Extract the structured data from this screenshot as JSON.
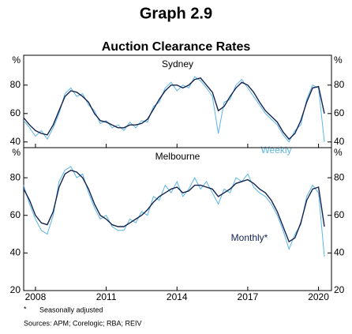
{
  "title": "Graph 2.9",
  "subtitle": "Auction Clearance Rates",
  "footnote_marker": "*",
  "footnote": "Seasonally adjusted",
  "sources": "Sources: APM; Corelogic; RBA; REIV",
  "chart_data": [
    {
      "type": "line",
      "panel_title": "Sydney",
      "y_unit": "%",
      "ylim": [
        36,
        101
      ],
      "yticks": [
        40,
        60,
        80
      ],
      "annotation": "Weekly",
      "x": [
        2007.5,
        2007.75,
        2008,
        2008.25,
        2008.5,
        2008.75,
        2009,
        2009.25,
        2009.5,
        2009.75,
        2010,
        2010.25,
        2010.5,
        2010.75,
        2011,
        2011.25,
        2011.5,
        2011.75,
        2012,
        2012.25,
        2012.5,
        2012.75,
        2013,
        2013.25,
        2013.5,
        2013.75,
        2014,
        2014.25,
        2014.5,
        2014.75,
        2015,
        2015.25,
        2015.5,
        2015.75,
        2016,
        2016.25,
        2016.5,
        2016.75,
        2017,
        2017.25,
        2017.5,
        2017.75,
        2018,
        2018.25,
        2018.5,
        2018.75,
        2019,
        2019.25,
        2019.5,
        2019.75,
        2020,
        2020.25
      ],
      "series": [
        {
          "name": "Weekly",
          "color": "#5cb6e6",
          "values": [
            55,
            50,
            44,
            48,
            42,
            50,
            60,
            74,
            78,
            72,
            74,
            66,
            62,
            53,
            55,
            50,
            52,
            48,
            54,
            50,
            55,
            54,
            65,
            68,
            78,
            82,
            76,
            80,
            78,
            86,
            83,
            78,
            72,
            46,
            68,
            70,
            80,
            84,
            78,
            72,
            66,
            60,
            56,
            52,
            45,
            40,
            48,
            52,
            70,
            80,
            78,
            40
          ]
        },
        {
          "name": "Monthly",
          "color": "#15234f",
          "values": [
            57,
            52,
            48,
            46,
            45,
            52,
            62,
            72,
            76,
            75,
            72,
            68,
            60,
            55,
            54,
            52,
            50,
            50,
            52,
            52,
            53,
            56,
            63,
            70,
            76,
            80,
            80,
            78,
            80,
            84,
            85,
            80,
            75,
            62,
            65,
            72,
            78,
            82,
            80,
            75,
            68,
            62,
            58,
            54,
            47,
            42,
            46,
            55,
            68,
            78,
            79,
            60
          ]
        }
      ]
    },
    {
      "type": "line",
      "panel_title": "Melbourne",
      "y_unit": "%",
      "ylim": [
        20,
        96
      ],
      "yticks": [
        20,
        40,
        60,
        80
      ],
      "annotation": "Monthly*",
      "xlim": [
        2007.5,
        2020.55
      ],
      "xticks": [
        2008,
        2011,
        2014,
        2017,
        2020
      ],
      "x": [
        2007.5,
        2007.75,
        2008,
        2008.25,
        2008.5,
        2008.75,
        2009,
        2009.25,
        2009.5,
        2009.75,
        2010,
        2010.25,
        2010.5,
        2010.75,
        2011,
        2011.25,
        2011.5,
        2011.75,
        2012,
        2012.25,
        2012.5,
        2012.75,
        2013,
        2013.25,
        2013.5,
        2013.75,
        2014,
        2014.25,
        2014.5,
        2014.75,
        2015,
        2015.25,
        2015.5,
        2015.75,
        2016,
        2016.25,
        2016.5,
        2016.75,
        2017,
        2017.25,
        2017.5,
        2017.75,
        2018,
        2018.25,
        2018.5,
        2018.75,
        2019,
        2019.25,
        2019.5,
        2019.75,
        2020,
        2020.25
      ],
      "series": [
        {
          "name": "Weekly",
          "color": "#5cb6e6",
          "values": [
            76,
            66,
            58,
            52,
            50,
            60,
            78,
            84,
            86,
            80,
            82,
            72,
            64,
            58,
            60,
            54,
            52,
            52,
            58,
            56,
            62,
            60,
            70,
            68,
            76,
            72,
            78,
            70,
            74,
            80,
            74,
            78,
            72,
            66,
            74,
            72,
            80,
            78,
            82,
            75,
            72,
            70,
            66,
            60,
            52,
            42,
            50,
            55,
            70,
            76,
            72,
            38
          ]
        },
        {
          "name": "Monthly",
          "color": "#15234f",
          "values": [
            74,
            68,
            60,
            56,
            55,
            62,
            75,
            82,
            84,
            83,
            80,
            74,
            66,
            60,
            58,
            55,
            54,
            54,
            56,
            58,
            60,
            63,
            67,
            70,
            72,
            74,
            75,
            72,
            73,
            76,
            76,
            75,
            74,
            70,
            72,
            74,
            77,
            78,
            79,
            77,
            74,
            72,
            68,
            62,
            54,
            46,
            48,
            56,
            68,
            74,
            75,
            54
          ]
        }
      ]
    }
  ]
}
